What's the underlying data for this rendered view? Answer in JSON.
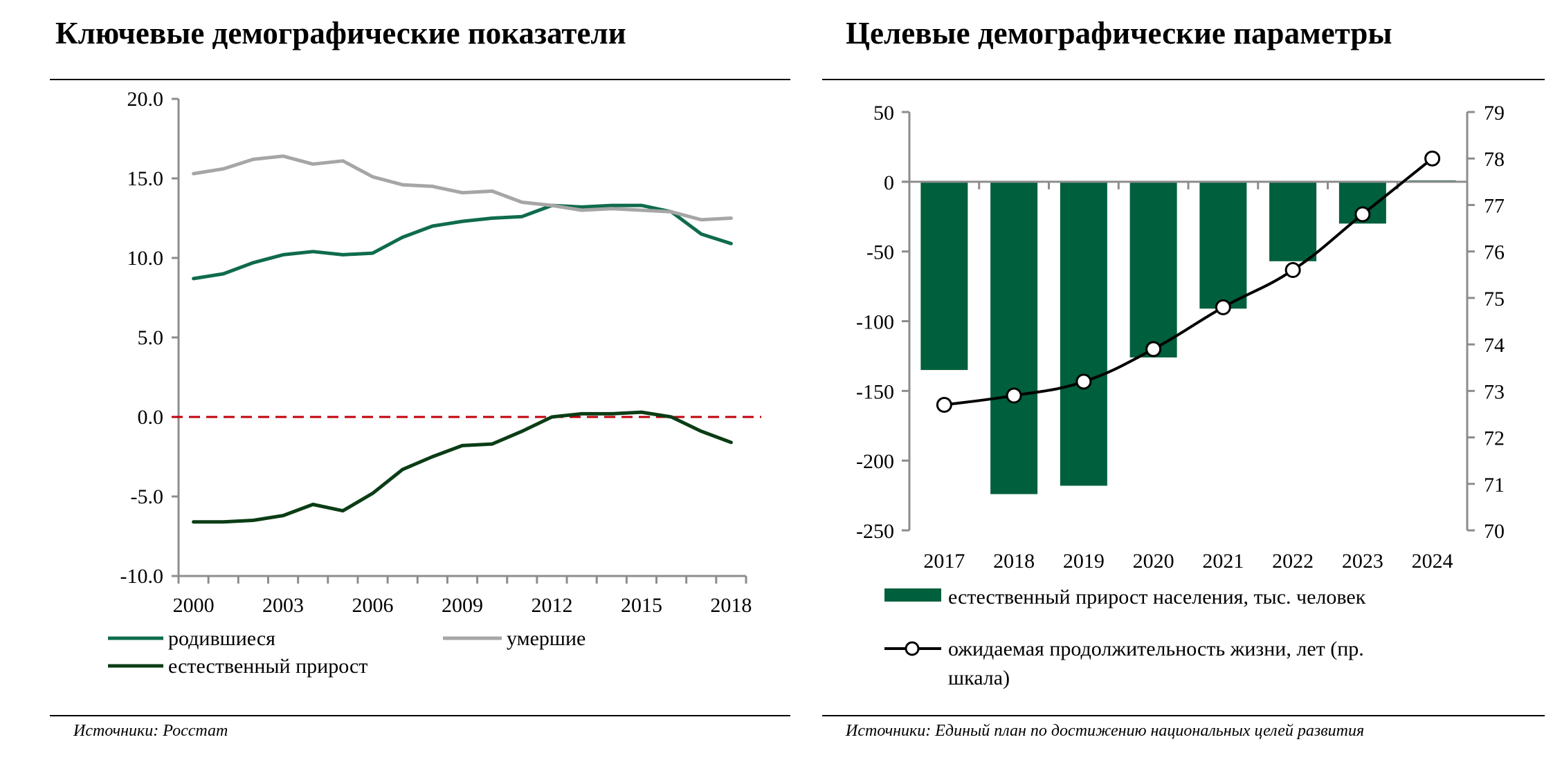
{
  "left_panel": {
    "title": "Ключевые демографические показатели",
    "source": "Источники: Росстат"
  },
  "right_panel": {
    "title": "Целевые демографические параметры",
    "source": "Источники: Единый план по достижению национальных целей развития"
  },
  "colors": {
    "births": "#0f6b4e",
    "deaths": "#a6a6a6",
    "natural": "#0b3d15",
    "zero_line": "#c0000b",
    "bars": "#005f3c",
    "life_line": "#000000",
    "axis": "#8c8c8c"
  },
  "chart_data": [
    {
      "type": "line",
      "title": "Ключевые демографические показатели",
      "x": [
        "2000",
        "2001",
        "2002",
        "2003",
        "2004",
        "2005",
        "2006",
        "2007",
        "2008",
        "2009",
        "2010",
        "2011",
        "2012",
        "2013",
        "2014",
        "2015",
        "2016",
        "2017",
        "2018"
      ],
      "x_tick_labels": [
        "2000",
        "2003",
        "2006",
        "2009",
        "2012",
        "2015",
        "2018"
      ],
      "y_tick_labels": [
        "20.0",
        "15.0",
        "10.0",
        "5.0",
        "0.0",
        "-5.0",
        "-10.0"
      ],
      "ylim": [
        -10,
        20
      ],
      "y_ticks": [
        20,
        15,
        10,
        5,
        0,
        -5,
        -10
      ],
      "reference_line": 0,
      "series": [
        {
          "name": "родившиеся",
          "key": "births",
          "values": [
            8.7,
            9.0,
            9.7,
            10.2,
            10.4,
            10.2,
            10.3,
            11.3,
            12.0,
            12.3,
            12.5,
            12.6,
            13.3,
            13.2,
            13.3,
            13.3,
            12.9,
            11.5,
            10.9
          ]
        },
        {
          "name": "умершие",
          "key": "deaths",
          "values": [
            15.3,
            15.6,
            16.2,
            16.4,
            15.9,
            16.1,
            15.1,
            14.6,
            14.5,
            14.1,
            14.2,
            13.5,
            13.3,
            13.0,
            13.1,
            13.0,
            12.9,
            12.4,
            12.5
          ]
        },
        {
          "name": "естественный прирост",
          "key": "natural",
          "values": [
            -6.6,
            -6.6,
            -6.5,
            -6.2,
            -5.5,
            -5.9,
            -4.8,
            -3.3,
            -2.5,
            -1.8,
            -1.7,
            -0.9,
            0.0,
            0.2,
            0.2,
            0.3,
            0.0,
            -0.9,
            -1.6
          ]
        }
      ],
      "legend": [
        "родившиеся",
        "умершие",
        "естественный прирост"
      ],
      "legend_position": "bottom"
    },
    {
      "type": "bar",
      "title": "Целевые демографические параметры",
      "categories": [
        "2017",
        "2018",
        "2019",
        "2020",
        "2021",
        "2022",
        "2023",
        "2024"
      ],
      "ylim": [
        -250,
        50
      ],
      "y_tick_labels": [
        "50",
        "0",
        "-50",
        "-100",
        "-150",
        "-200",
        "-250"
      ],
      "y_ticks": [
        50,
        0,
        -50,
        -100,
        -150,
        -200,
        -250
      ],
      "y2lim": [
        70,
        79
      ],
      "y2_tick_labels": [
        "79",
        "78",
        "77",
        "76",
        "75",
        "74",
        "73",
        "72",
        "71",
        "70"
      ],
      "y2_ticks": [
        79,
        78,
        77,
        76,
        75,
        74,
        73,
        72,
        71,
        70
      ],
      "series": [
        {
          "name": "естественный прирост населения, тыс. человек",
          "type": "bar",
          "axis": "left",
          "values": [
            -135,
            -224,
            -218,
            -126,
            -91,
            -57,
            -30,
            1
          ]
        },
        {
          "name": "ожидаемая продолжительность жизни, лет (пр. шкала)",
          "type": "line",
          "axis": "right",
          "values": [
            72.7,
            72.9,
            73.2,
            73.9,
            74.8,
            75.6,
            76.8,
            78.0
          ]
        }
      ],
      "legend": [
        "естественный прирост населения, тыс. человек",
        "ожидаемая продолжительность жизни, лет (пр.",
        "шкала)"
      ],
      "legend_position": "bottom"
    }
  ]
}
